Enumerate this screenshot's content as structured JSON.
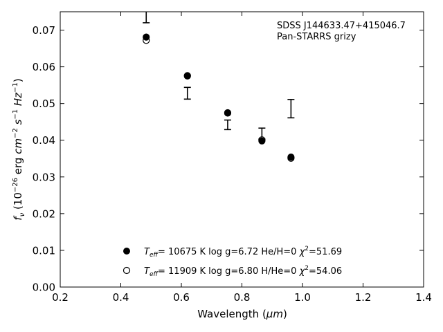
{
  "chart_data": {
    "type": "scatter",
    "xlabel_main": "Wavelength (",
    "xlabel_unit": "μm",
    "xlabel_close": ")",
    "ylabel_f": "f",
    "ylabel_sub": "ν",
    "ylabel_open": " (10",
    "ylabel_exp1": "−26",
    "ylabel_erg": " erg ",
    "ylabel_cm": "cm",
    "ylabel_exp2": "−2",
    "ylabel_s": " s",
    "ylabel_exp3": "−1",
    "ylabel_hz": " Hz",
    "ylabel_exp4": "−1",
    "ylabel_close": ")",
    "xlim": [
      0.2,
      1.4
    ],
    "ylim": [
      0.0,
      0.075
    ],
    "xticks": [
      "0.2",
      "0.4",
      "0.6",
      "0.8",
      "1.0",
      "1.2",
      "1.4"
    ],
    "yticks": [
      "0.00",
      "0.01",
      "0.02",
      "0.03",
      "0.04",
      "0.05",
      "0.06",
      "0.07"
    ],
    "grid": false,
    "annotation_line1": "SDSS J144633.47+415046.7",
    "annotation_line2": "Pan-STARRS grizy",
    "observed": {
      "x": [
        0.484,
        0.62,
        0.753,
        0.866,
        0.962
      ],
      "y": [
        0.0755,
        0.0528,
        0.0442,
        0.0418,
        0.0486
      ],
      "yerr": [
        0.0035,
        0.0016,
        0.0013,
        0.0015,
        0.0025
      ]
    },
    "series": [
      {
        "marker": "filled",
        "legend_T": "T",
        "legend_eff": "eff",
        "legend_rest": "= 10675 K  log g=6.72  He/H=0  ",
        "legend_chi": "χ",
        "legend_chiexp": "2",
        "legend_chival": "=51.69",
        "x": [
          0.484,
          0.62,
          0.753,
          0.866,
          0.962
        ],
        "y": [
          0.0681,
          0.0576,
          0.0475,
          0.0398,
          0.0354
        ]
      },
      {
        "marker": "open",
        "legend_T": "T",
        "legend_eff": "eff",
        "legend_rest": "= 11909 K  log g=6.80  H/He=0  ",
        "legend_chi": "χ",
        "legend_chiexp": "2",
        "legend_chival": "=54.06",
        "x": [
          0.484,
          0.62,
          0.753,
          0.866,
          0.962
        ],
        "y": [
          0.0672,
          0.0575,
          0.0474,
          0.0401,
          0.0351
        ]
      }
    ]
  }
}
